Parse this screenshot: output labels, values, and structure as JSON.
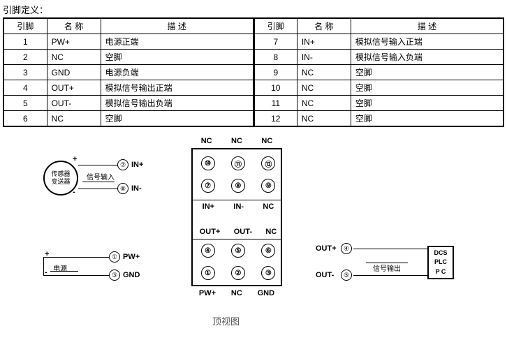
{
  "title": "引脚定义：",
  "table": {
    "headers": {
      "pin": "引脚",
      "name": "名 称",
      "desc": "描  述"
    },
    "left_rows": [
      {
        "pin": "1",
        "name": "PW+",
        "desc": "电源正端"
      },
      {
        "pin": "2",
        "name": "NC",
        "desc": "空脚"
      },
      {
        "pin": "3",
        "name": "GND",
        "desc": "电源负端"
      },
      {
        "pin": "4",
        "name": "OUT+",
        "desc": "模拟信号输出正端"
      },
      {
        "pin": "5",
        "name": "OUT-",
        "desc": "模拟信号输出负端"
      },
      {
        "pin": "6",
        "name": "NC",
        "desc": "空脚"
      }
    ],
    "right_rows": [
      {
        "pin": "7",
        "name": "IN+",
        "desc": "模拟信号输入正端"
      },
      {
        "pin": "8",
        "name": "IN-",
        "desc": "模拟信号输入负端"
      },
      {
        "pin": "9",
        "name": "NC",
        "desc": "空脚"
      },
      {
        "pin": "10",
        "name": "NC",
        "desc": "空脚"
      },
      {
        "pin": "11",
        "name": "NC",
        "desc": "空脚"
      },
      {
        "pin": "12",
        "name": "NC",
        "desc": "空脚"
      }
    ],
    "colors": {
      "border": "#000000",
      "bg": "#ffffff"
    }
  },
  "diagram": {
    "caption": "顶视图",
    "connector": {
      "row_top_labels": [
        "NC",
        "NC",
        "NC"
      ],
      "row_mid_labels": [
        "IN+",
        "IN-",
        "NC"
      ],
      "row_low_labels": [
        "OUT+",
        "OUT-",
        "NC"
      ],
      "row_bot_labels": [
        "PW+",
        "NC",
        "GND"
      ],
      "pin_nums_top": [
        "⑩",
        "⑪",
        "⑫"
      ],
      "pin_nums_mid": [
        "⑦",
        "⑧",
        "⑨"
      ],
      "pin_nums_low": [
        "④",
        "⑤",
        "⑥"
      ],
      "pin_nums_bot": [
        "①",
        "②",
        "③"
      ]
    },
    "left_sensor": {
      "line1": "传感器",
      "line2": "变送器",
      "plus": "+",
      "minus": "-",
      "signal_in": "信号输入",
      "pin7": "⑦",
      "pin7_label": "IN+",
      "pin8": "⑧",
      "pin8_label": "IN-"
    },
    "power": {
      "plus": "+",
      "minus": "-",
      "label": "电源",
      "pin1": "①",
      "pin1_label": "PW+",
      "pin3": "③",
      "pin3_label": "GND"
    },
    "right_out": {
      "out_plus_label": "OUT+",
      "pin4": "④",
      "out_minus_label": "OUT-",
      "pin5": "⑤",
      "signal_out": "信号输出",
      "plc_lines": [
        "DCS",
        "PLC",
        "P  C"
      ]
    }
  }
}
